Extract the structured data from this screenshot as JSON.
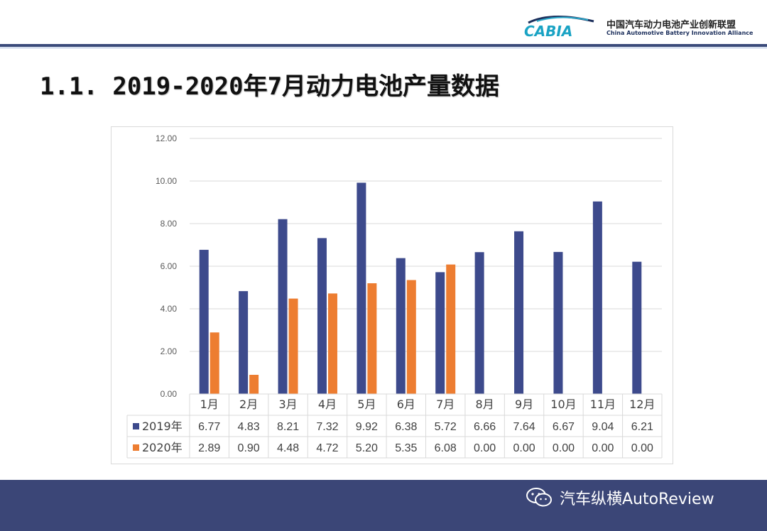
{
  "header": {
    "logo_text": "CABIA",
    "org_cn": "中国汽车动力电池产业创新联盟",
    "org_en": "China Automotive Battery Innovation Alliance"
  },
  "slide_title": "1.1. 2019-2020年7月动力电池产量数据",
  "watermark": {
    "icon": "wechat-icon",
    "text": "汽车纵横AutoReview"
  },
  "colors": {
    "series_2019": "#3d4a8c",
    "series_2020": "#ed7d31",
    "footer": "#3b4677"
  },
  "chart_data": {
    "type": "bar",
    "categories": [
      "1月",
      "2月",
      "3月",
      "4月",
      "5月",
      "6月",
      "7月",
      "8月",
      "9月",
      "10月",
      "11月",
      "12月"
    ],
    "series": [
      {
        "name": "2019年",
        "values": [
          6.77,
          4.83,
          8.21,
          7.32,
          9.92,
          6.38,
          5.72,
          6.66,
          7.64,
          6.67,
          9.04,
          6.21
        ]
      },
      {
        "name": "2020年",
        "values": [
          2.89,
          0.9,
          4.48,
          4.72,
          5.2,
          5.35,
          6.08,
          0.0,
          0.0,
          0.0,
          0.0,
          0.0
        ]
      }
    ],
    "table_values": {
      "2019年": [
        "6.77",
        "4.83",
        "8.21",
        "7.32",
        "9.92",
        "6.38",
        "5.72",
        "6.66",
        "7.64",
        "6.67",
        "9.04",
        "6.21"
      ],
      "2020年": [
        "2.89",
        "0.90",
        "4.48",
        "4.72",
        "5.20",
        "5.35",
        "6.08",
        "0.00",
        "0.00",
        "0.00",
        "0.00",
        "0.00"
      ]
    },
    "y_ticks": [
      "0.00",
      "2.00",
      "4.00",
      "6.00",
      "8.00",
      "10.00",
      "12.00"
    ],
    "ylim": [
      0,
      12
    ],
    "grid": true,
    "data_table": true
  }
}
